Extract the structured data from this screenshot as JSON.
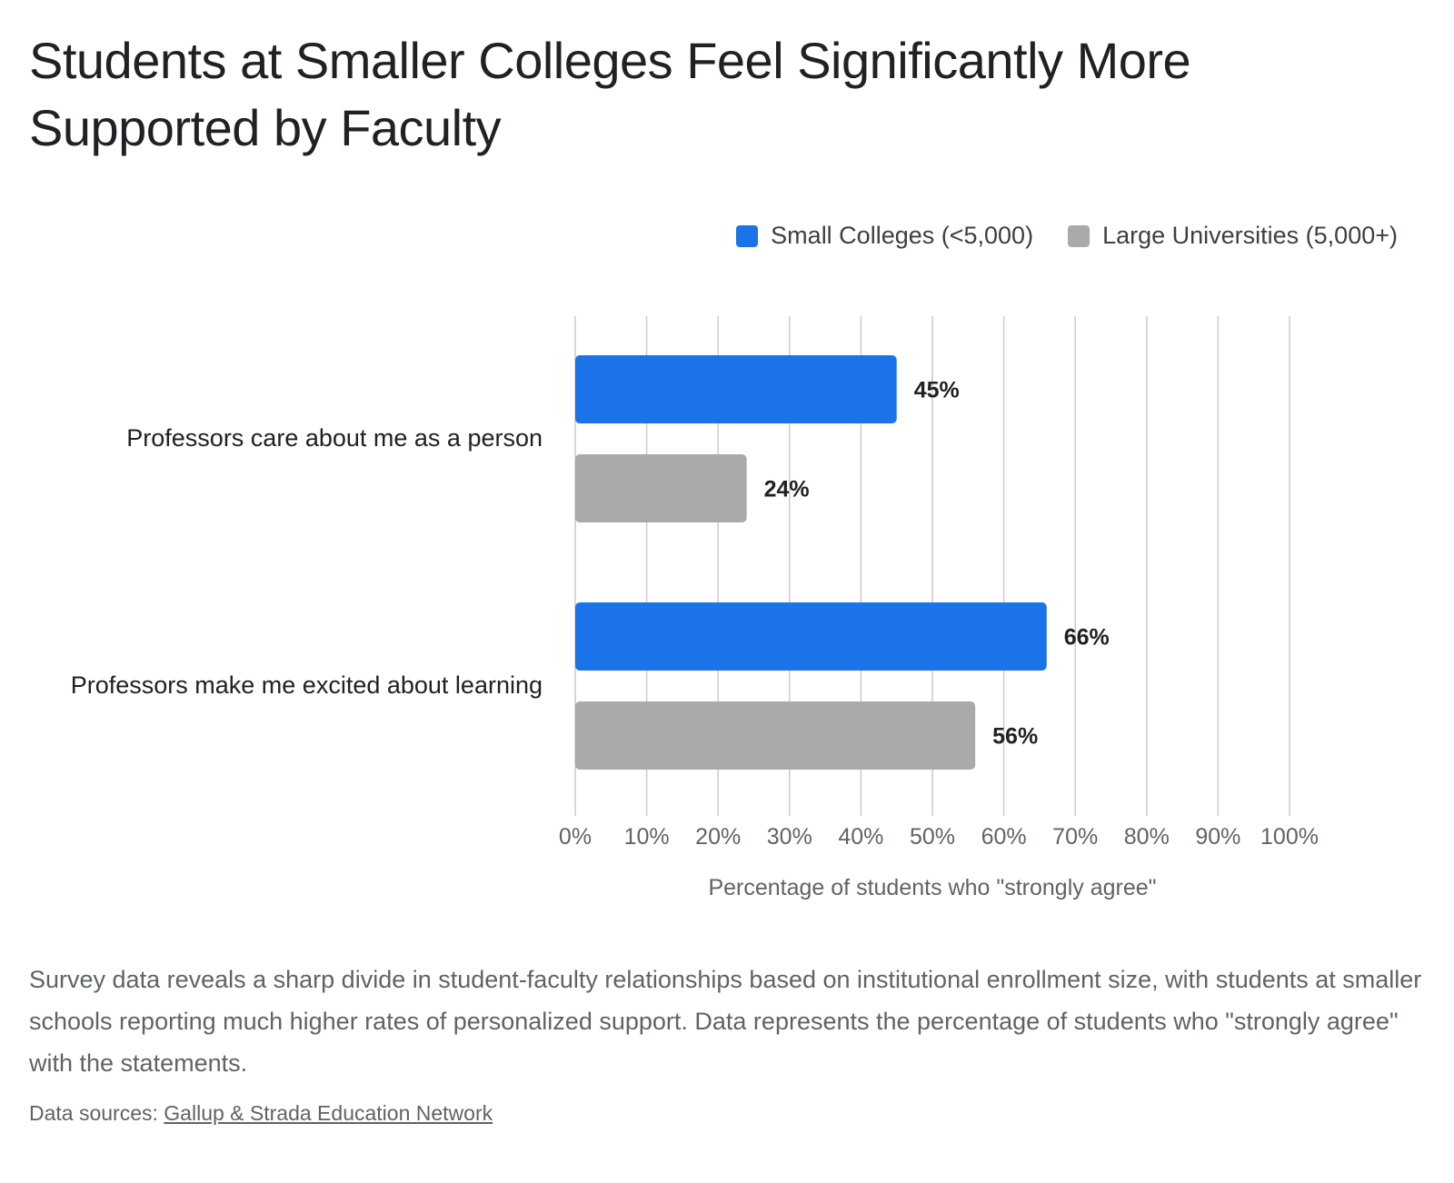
{
  "title": "Students at Smaller Colleges Feel Significantly More Supported by Faculty",
  "description": "Survey data reveals a sharp divide in student-faculty relationships based on institutional enrollment size, with students at smaller schools reporting much higher rates of personalized support. Data represents the percentage of students who \"strongly agree\" with the statements.",
  "sources": {
    "prefix": "Data sources:",
    "link_text": "Gallup & Strada Education Network"
  },
  "colors": {
    "small": "#1a73e8",
    "large": "#aaaaaa",
    "grid": "#cccccc",
    "text": "#202124"
  },
  "chart_data": {
    "type": "bar",
    "orientation": "horizontal",
    "categories": [
      "Professors care about me as a person",
      "Professors make me excited about learning"
    ],
    "series": [
      {
        "name": "Small Colleges (<5,000)",
        "values": [
          45,
          66
        ]
      },
      {
        "name": "Large Universities (5,000+)",
        "values": [
          24,
          56
        ]
      }
    ],
    "data_labels": [
      [
        "45%",
        "66%"
      ],
      [
        "24%",
        "56%"
      ]
    ],
    "xlabel": "Percentage of students who \"strongly agree\"",
    "xlim": [
      0,
      100
    ],
    "xticks": [
      "0%",
      "10%",
      "20%",
      "30%",
      "40%",
      "50%",
      "60%",
      "70%",
      "80%",
      "90%",
      "100%"
    ],
    "grid": true,
    "legend_position": "top-right"
  }
}
